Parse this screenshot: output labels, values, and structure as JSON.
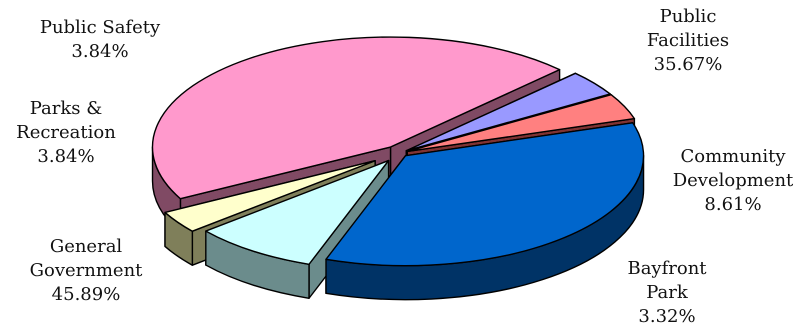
{
  "chart_data": {
    "type": "pie",
    "title": "",
    "categories": [
      "Public Facilities",
      "Community Development",
      "Bayfront Park",
      "General Government",
      "Parks & Recreation",
      "Public Safety"
    ],
    "values": [
      35.67,
      8.61,
      3.32,
      45.89,
      3.84,
      3.84
    ],
    "slices": [
      {
        "label_lines": [
          "Public",
          "Facilities"
        ],
        "value_text": "35.67%",
        "value": 35.67,
        "color": "#0066CC",
        "side_color": "#003366",
        "exploded": false
      },
      {
        "label_lines": [
          "Community",
          "Development"
        ],
        "value_text": "8.61%",
        "value": 8.61,
        "color": "#CCFFFF",
        "side_color": "#6B8C8C",
        "exploded": true
      },
      {
        "label_lines": [
          "Bayfront",
          "Park"
        ],
        "value_text": "3.32%",
        "value": 3.32,
        "color": "#FFFFCC",
        "side_color": "#7F7F5A",
        "exploded": true
      },
      {
        "label_lines": [
          "General",
          "Government"
        ],
        "value_text": "45.89%",
        "value": 45.89,
        "color": "#FF99CC",
        "side_color": "#804A64",
        "exploded": false
      },
      {
        "label_lines": [
          "Parks &",
          "Recreation"
        ],
        "value_text": "3.84%",
        "value": 3.84,
        "color": "#9999FF",
        "side_color": "#333366",
        "exploded": false
      },
      {
        "label_lines": [
          "Public Safety"
        ],
        "value_text": "3.84%",
        "value": 3.84,
        "color": "#FF8080",
        "side_color": "#803333",
        "exploded": false
      }
    ],
    "legend": "none",
    "style": "3d-exploded"
  }
}
